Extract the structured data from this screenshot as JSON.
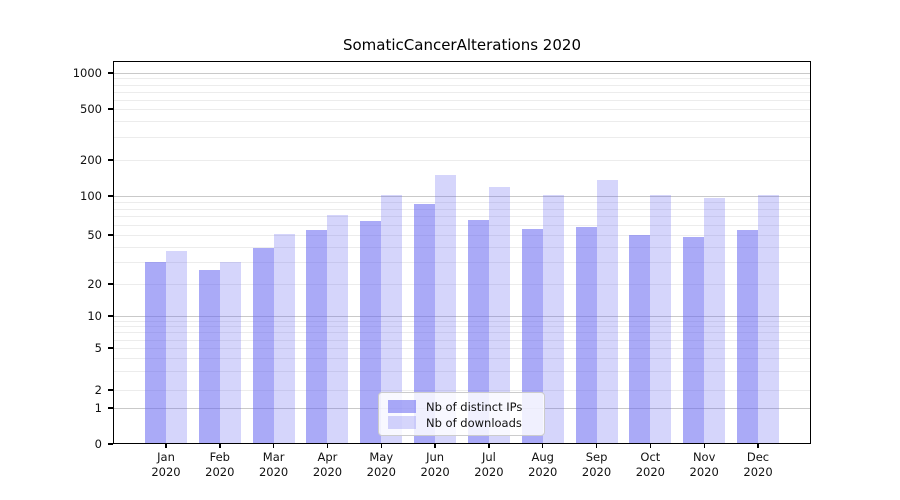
{
  "title": "SomaticCancerAlterations 2020",
  "chart_data": {
    "type": "bar",
    "title": "SomaticCancerAlterations 2020",
    "categories": [
      "Jan 2020",
      "Feb 2020",
      "Mar 2020",
      "Apr 2020",
      "May 2020",
      "Jun 2020",
      "Jul 2020",
      "Aug 2020",
      "Sep 2020",
      "Oct 2020",
      "Nov 2020",
      "Dec 2020"
    ],
    "x_tick_lines": [
      {
        "month": "Jan",
        "year": "2020"
      },
      {
        "month": "Feb",
        "year": "2020"
      },
      {
        "month": "Mar",
        "year": "2020"
      },
      {
        "month": "Apr",
        "year": "2020"
      },
      {
        "month": "May",
        "year": "2020"
      },
      {
        "month": "Jun",
        "year": "2020"
      },
      {
        "month": "Jul",
        "year": "2020"
      },
      {
        "month": "Aug",
        "year": "2020"
      },
      {
        "month": "Sep",
        "year": "2020"
      },
      {
        "month": "Oct",
        "year": "2020"
      },
      {
        "month": "Nov",
        "year": "2020"
      },
      {
        "month": "Dec",
        "year": "2020"
      }
    ],
    "series": [
      {
        "name": "Nb of distinct IPs",
        "color": "#aaaaf4",
        "fill": "rgba(100,100,240,0.55)",
        "values": [
          30,
          26,
          39,
          55,
          64,
          87,
          65,
          56,
          58,
          50,
          48,
          55
        ]
      },
      {
        "name": "Nb of downloads",
        "color": "#d9d9fa",
        "fill": "rgba(100,100,240,0.27)",
        "values": [
          37,
          30,
          51,
          71,
          102,
          150,
          119,
          101,
          135,
          102,
          96,
          101
        ]
      }
    ],
    "y_axis": {
      "scale": "log-like (0,1,2,5 ... 1000)",
      "tick_values": [
        0,
        1,
        2,
        5,
        10,
        20,
        50,
        100,
        200,
        500,
        1000
      ],
      "tick_labels": [
        "0",
        "1",
        "2",
        "5",
        "10",
        "20",
        "50",
        "100",
        "200",
        "500",
        "1000"
      ],
      "major_grid_values": [
        1,
        10,
        100,
        1000
      ],
      "minor_grid_values": [
        2,
        3,
        4,
        5,
        6,
        7,
        8,
        9,
        20,
        30,
        40,
        50,
        60,
        70,
        80,
        90,
        200,
        300,
        400,
        500,
        600,
        700,
        800,
        900
      ],
      "ylim": [
        0,
        1300
      ]
    },
    "xlabel": "",
    "ylabel": "",
    "grid": "horizontal",
    "legend_position": "lower center",
    "colors": {
      "major_grid": "#c9c9c9",
      "minor_grid": "#ececec",
      "axis": "#000000",
      "background": "#ffffff"
    }
  },
  "legend": {
    "items": [
      {
        "label": "Nb of distinct IPs"
      },
      {
        "label": "Nb of downloads"
      }
    ]
  }
}
